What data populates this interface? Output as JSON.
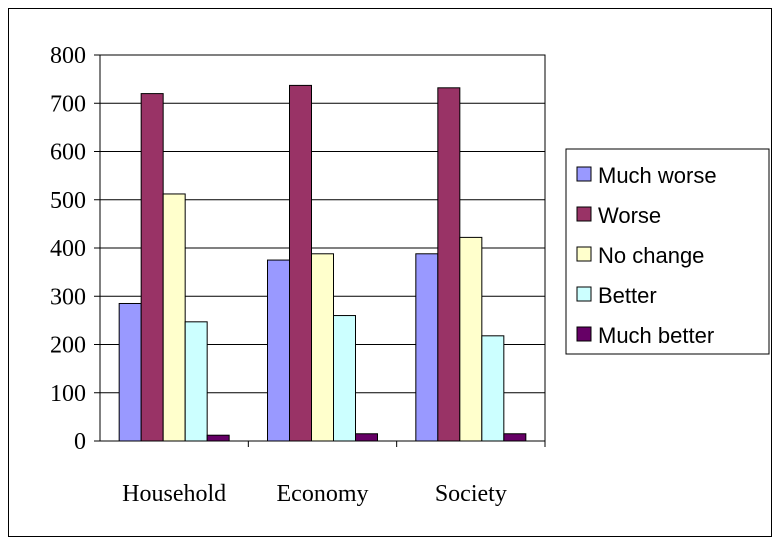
{
  "chart_data": {
    "type": "bar",
    "title": "",
    "xlabel": "",
    "ylabel": "",
    "categories": [
      "Household",
      "Economy",
      "Society"
    ],
    "ylim": [
      0,
      800
    ],
    "yticks": [
      0,
      100,
      200,
      300,
      400,
      500,
      600,
      700,
      800
    ],
    "grid": true,
    "legend_position": "right",
    "series": [
      {
        "name": "Much worse",
        "color": "#9999ff",
        "values": [
          285,
          375,
          388
        ]
      },
      {
        "name": "Worse",
        "color": "#993366",
        "values": [
          720,
          737,
          732
        ]
      },
      {
        "name": "No change",
        "color": "#ffffcc",
        "values": [
          512,
          388,
          422
        ]
      },
      {
        "name": "Better",
        "color": "#ccffff",
        "values": [
          247,
          260,
          218
        ]
      },
      {
        "name": "Much better",
        "color": "#660066",
        "values": [
          12,
          15,
          15
        ]
      }
    ]
  }
}
